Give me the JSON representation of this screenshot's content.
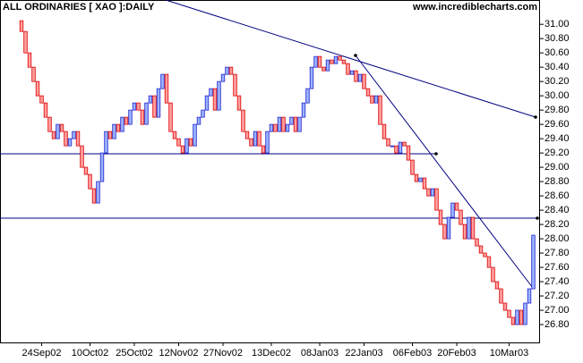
{
  "chart_data": {
    "type": "candlestick",
    "title": "ALL ORDINARIES [ XAO ]:DAILY",
    "source": "www.incrediblecharts.com",
    "categories": [
      null,
      null,
      null,
      null,
      null,
      "24Sep02",
      null,
      null,
      null,
      null,
      null,
      null,
      null,
      null,
      null,
      null,
      null,
      "10Oct02",
      null,
      null,
      null,
      null,
      null,
      null,
      null,
      null,
      null,
      null,
      "25Oct02",
      null,
      null,
      null,
      null,
      null,
      null,
      null,
      null,
      null,
      null,
      "12Nov02",
      null,
      null,
      null,
      null,
      null,
      null,
      null,
      null,
      null,
      null,
      "27Nov02",
      null,
      null,
      null,
      null,
      null,
      null,
      null,
      null,
      null,
      null,
      null,
      "13Dec02",
      null,
      null,
      null,
      null,
      null,
      null,
      null,
      null,
      null,
      null,
      null,
      "08Jan03",
      null,
      null,
      null,
      null,
      null,
      null,
      null,
      null,
      null,
      null,
      "22Jan03",
      null,
      null,
      null,
      null,
      null,
      null,
      null,
      null,
      null,
      null,
      null,
      "06Feb03",
      null,
      null,
      null,
      null,
      null,
      null,
      null,
      null,
      null,
      null,
      "20Feb03",
      null,
      null,
      null,
      null,
      null,
      null,
      null,
      null,
      null,
      null,
      null,
      null,
      "10Mar03",
      null,
      null,
      null,
      null,
      null,
      null
    ],
    "open": [
      31.05,
      30.9,
      30.6,
      30.4,
      30.2,
      30.0,
      29.9,
      29.7,
      29.5,
      29.4,
      29.6,
      29.5,
      29.3,
      29.4,
      29.5,
      29.3,
      29.0,
      28.9,
      28.7,
      28.5,
      28.8,
      29.2,
      29.5,
      29.4,
      29.6,
      29.5,
      29.7,
      29.6,
      29.8,
      29.9,
      29.8,
      29.6,
      29.9,
      30.0,
      29.7,
      30.1,
      30.3,
      29.9,
      29.5,
      29.4,
      29.3,
      29.2,
      29.4,
      29.3,
      29.6,
      29.7,
      29.8,
      30.0,
      30.1,
      29.8,
      30.2,
      30.3,
      30.4,
      30.3,
      30.0,
      29.8,
      29.5,
      29.4,
      29.3,
      29.5,
      29.3,
      29.2,
      29.5,
      29.6,
      29.5,
      29.7,
      29.5,
      29.6,
      29.7,
      29.5,
      29.7,
      29.9,
      30.1,
      30.4,
      30.55,
      30.4,
      30.35,
      30.5,
      30.45,
      30.55,
      30.5,
      30.45,
      30.3,
      30.35,
      30.2,
      30.3,
      30.1,
      30.0,
      29.9,
      30.0,
      29.6,
      29.4,
      29.3,
      29.3,
      29.2,
      29.35,
      29.3,
      29.1,
      28.9,
      28.8,
      28.85,
      28.7,
      28.6,
      28.7,
      28.4,
      28.2,
      28.0,
      28.3,
      28.5,
      28.4,
      28.2,
      28.0,
      28.3,
      28.0,
      27.9,
      27.8,
      27.75,
      27.6,
      27.4,
      27.3,
      27.1,
      27.0,
      26.9,
      26.8,
      27.0,
      26.8,
      27.1,
      27.3
    ],
    "close": [
      30.9,
      30.6,
      30.4,
      30.2,
      30.0,
      29.9,
      29.7,
      29.5,
      29.4,
      29.6,
      29.5,
      29.3,
      29.4,
      29.5,
      29.3,
      29.0,
      28.9,
      28.7,
      28.5,
      28.8,
      29.2,
      29.5,
      29.4,
      29.6,
      29.5,
      29.7,
      29.6,
      29.8,
      29.9,
      29.8,
      29.6,
      29.9,
      30.0,
      29.7,
      30.1,
      30.3,
      29.9,
      29.5,
      29.4,
      29.3,
      29.2,
      29.4,
      29.3,
      29.6,
      29.7,
      29.8,
      30.0,
      30.1,
      29.8,
      30.2,
      30.3,
      30.4,
      30.3,
      30.0,
      29.8,
      29.5,
      29.4,
      29.3,
      29.5,
      29.3,
      29.2,
      29.5,
      29.6,
      29.5,
      29.7,
      29.5,
      29.6,
      29.7,
      29.5,
      29.7,
      29.9,
      30.1,
      30.4,
      30.55,
      30.4,
      30.35,
      30.5,
      30.45,
      30.55,
      30.5,
      30.45,
      30.3,
      30.35,
      30.2,
      30.3,
      30.1,
      30.0,
      29.9,
      30.0,
      29.6,
      29.4,
      29.3,
      29.3,
      29.2,
      29.35,
      29.3,
      29.1,
      28.9,
      28.8,
      28.85,
      28.7,
      28.6,
      28.7,
      28.4,
      28.2,
      28.0,
      28.3,
      28.5,
      28.4,
      28.2,
      28.0,
      28.3,
      28.0,
      27.9,
      27.8,
      27.75,
      27.6,
      27.4,
      27.3,
      27.1,
      27.0,
      26.9,
      26.8,
      27.0,
      26.8,
      27.1,
      27.3,
      28.05
    ],
    "up_color": "#99b3ff",
    "up_edge": "#2222cc",
    "down_color": "#ff9f9f",
    "down_edge": "#dd0000",
    "ylim": [
      26.55,
      31.34
    ],
    "yticks": [
      {
        "value": 26.8,
        "label": "26.80"
      },
      {
        "value": 27.0,
        "label": "27.00"
      },
      {
        "value": 27.2,
        "label": "27.20"
      },
      {
        "value": 27.4,
        "label": "27.40"
      },
      {
        "value": 27.6,
        "label": "27.60"
      },
      {
        "value": 27.8,
        "label": "27.80"
      },
      {
        "value": 28.0,
        "label": "28.00"
      },
      {
        "value": 28.2,
        "label": "28.20"
      },
      {
        "value": 28.4,
        "label": "28.40"
      },
      {
        "value": 28.6,
        "label": "28.60"
      },
      {
        "value": 28.8,
        "label": "28.80"
      },
      {
        "value": 29.0,
        "label": "29.00"
      },
      {
        "value": 29.2,
        "label": "29.20"
      },
      {
        "value": 29.4,
        "label": "29.40"
      },
      {
        "value": 29.6,
        "label": "29.60"
      },
      {
        "value": 29.8,
        "label": "29.80"
      },
      {
        "value": 30.0,
        "label": "30.00"
      },
      {
        "value": 30.2,
        "label": "30.20"
      },
      {
        "value": 30.4,
        "label": "30.40"
      },
      {
        "value": 30.6,
        "label": "30.60"
      },
      {
        "value": 30.8,
        "label": "30.80"
      },
      {
        "value": 31.0,
        "label": "31.00"
      }
    ],
    "grid": false
  }
}
